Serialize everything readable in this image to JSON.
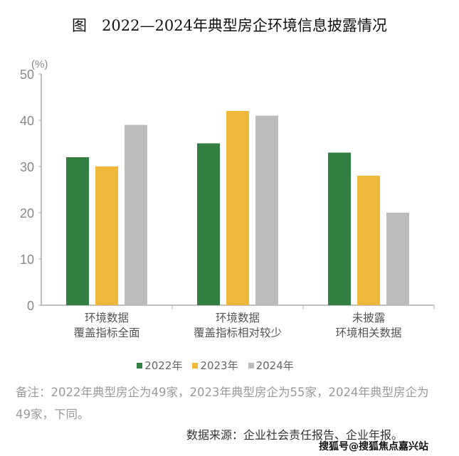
{
  "title": "图　2022—2024年典型房企环境信息披露情况",
  "chart_data": {
    "type": "bar",
    "title": "图　2022—2024年典型房企环境信息披露情况",
    "ylabel": "(%)",
    "ylim": [
      0,
      50
    ],
    "yticks": [
      0,
      10,
      20,
      30,
      40,
      50
    ],
    "categories": [
      [
        "环境数据",
        "覆盖指标全面"
      ],
      [
        "环境数据",
        "覆盖指标相对较少"
      ],
      [
        "未披露",
        "环境相关数据"
      ]
    ],
    "series": [
      {
        "name": "2022年",
        "color": "#337f42",
        "values": [
          32,
          35,
          33
        ]
      },
      {
        "name": "2023年",
        "color": "#eeb93a",
        "values": [
          30,
          42,
          28
        ]
      },
      {
        "name": "2024年",
        "color": "#bcbcbe",
        "values": [
          39,
          41,
          20
        ]
      }
    ],
    "legend_position": "bottom",
    "grid": false
  },
  "note": "备注：2022年典型房企为49家，2023年典型房企为55家，2024年典型房企为49家，下同。",
  "source": "数据来源：企业社会责任报告、企业年报。",
  "watermark": "搜狐号@搜狐焦点嘉兴站"
}
